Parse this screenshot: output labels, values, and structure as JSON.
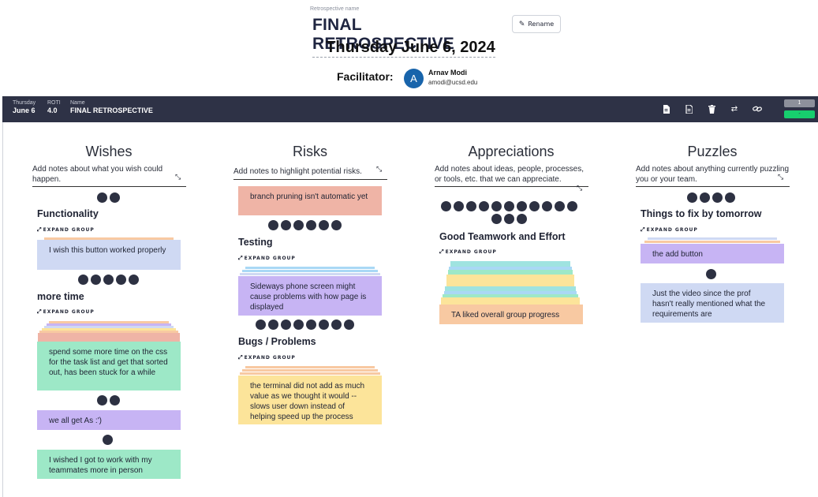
{
  "header": {
    "retro_name_label": "Retrospective name",
    "title": "FINAL RETROSPECTIVE",
    "rename_label": "Rename",
    "date": "Thursday June 6, 2024",
    "facilitator_label": "Facilitator:",
    "facilitator_initial": "A",
    "facilitator_name": "Arnav Modi",
    "facilitator_email": "amodi@ucsd.edu"
  },
  "topbar": {
    "day_label": "Thursday",
    "day_value": "June 6",
    "roti_label": "ROTI",
    "roti_value": "4.0",
    "name_label": "Name",
    "name_value": "FINAL RETROSPECTIVE",
    "icons": [
      "document-icon",
      "document-alt-icon",
      "trash-icon",
      "swap-icon",
      "link-icon"
    ],
    "counter": "1",
    "counter_status": "-"
  },
  "columns": [
    {
      "title": "Wishes",
      "prompt": "Add notes about what you wish could happen.",
      "groups": [
        {
          "votes": 2,
          "title": "Functionality",
          "expand": "EXPAND GROUP",
          "card": "I wish this button worked properly"
        },
        {
          "votes": 5,
          "title": "more time",
          "expand": "EXPAND GROUP",
          "card": "spend some more time on the css for the task list and get that sorted out, has been stuck for a while"
        }
      ],
      "cards": [
        {
          "votes": 2,
          "text": "we all get As :')"
        },
        {
          "votes": 1,
          "text": "I wished I got to work with my teammates more in person"
        }
      ]
    },
    {
      "title": "Risks",
      "prompt": "Add notes to highlight potential risks.",
      "cards_top": [
        {
          "text": "branch pruning isn't automatic yet"
        }
      ],
      "groups": [
        {
          "votes": 6,
          "title": "Testing",
          "expand": "EXPAND GROUP",
          "card": "Sideways phone screen might cause problems with how page is displayed"
        },
        {
          "votes": 8,
          "title": "Bugs / Problems",
          "expand": "EXPAND GROUP",
          "card": "the terminal did not add as much value as we thought it would -- slows user down instead of helping speed up the process"
        }
      ]
    },
    {
      "title": "Appreciations",
      "prompt": "Add notes about ideas, people, processes, or tools, etc. that we can appreciate.",
      "groups": [
        {
          "votes": 14,
          "title": "Good Teamwork and Effort",
          "expand": "EXPAND GROUP",
          "card": "TA liked overall group progress"
        }
      ]
    },
    {
      "title": "Puzzles",
      "prompt": "Add notes about anything currently puzzling you or your team.",
      "groups": [
        {
          "votes": 4,
          "title": "Things to fix by tomorrow",
          "expand": "EXPAND GROUP",
          "card": "the add button"
        }
      ],
      "cards": [
        {
          "votes": 1,
          "text": "Just the video since the prof hasn't really mentioned what the requirements are"
        }
      ]
    }
  ],
  "colors": {
    "topbar": "#2e3246",
    "dot": "#2d3142",
    "avatar": "#1864ab",
    "yellow": "#fce49a",
    "green": "#9de8c7",
    "blue": "#cfd9f3",
    "purple": "#c7b4f4",
    "salmon": "#efb4a6",
    "orange": "#f8c9a2",
    "counter_green": "#17cf6e"
  }
}
